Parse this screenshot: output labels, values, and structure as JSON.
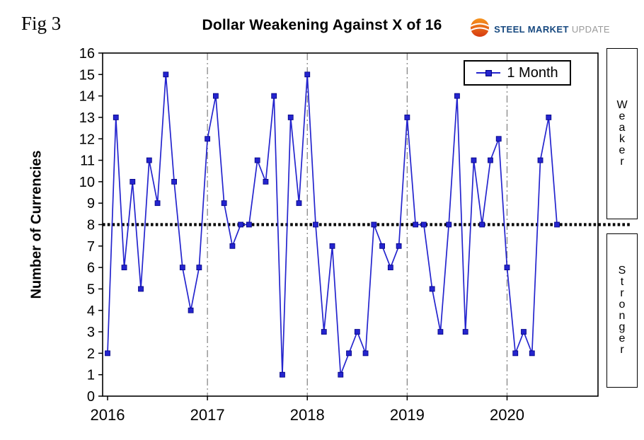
{
  "fig_label": "Fig 3",
  "title": "Dollar Weakening Against X of 16",
  "logo": {
    "part1": "STEEL",
    "part2": "MARKET",
    "part3": "UPDATE"
  },
  "ylabel": "Number of Currencies",
  "annotations": {
    "weaker": "Weaker",
    "stronger": "Stronger"
  },
  "chart_data": {
    "type": "line",
    "title": "Dollar Weakening Against X of 16",
    "xlabel": "",
    "ylabel": "Number of Currencies",
    "ylim": [
      0,
      16
    ],
    "yticks": [
      0,
      1,
      2,
      3,
      4,
      5,
      6,
      7,
      8,
      9,
      10,
      11,
      12,
      13,
      14,
      15,
      16
    ],
    "x_start": "2016-01",
    "x_frequency": "monthly",
    "x_tick_labels": [
      "2016",
      "2017",
      "2018",
      "2019",
      "2020"
    ],
    "grid": "vertical dash-dot at year boundaries",
    "legend_position": "top-right inside plot",
    "reference_line": {
      "value": 8,
      "style": "thick dotted black"
    },
    "right_labels": [
      "Weaker",
      "Stronger"
    ],
    "series": [
      {
        "name": "1 Month",
        "color": "#2424ce",
        "marker": "square",
        "marker_edge": "#000080",
        "values": [
          2,
          13,
          6,
          10,
          5,
          11,
          9,
          15,
          10,
          6,
          4,
          6,
          12,
          14,
          9,
          7,
          8,
          8,
          11,
          10,
          14,
          1,
          13,
          9,
          15,
          8,
          3,
          7,
          1,
          2,
          3,
          2,
          8,
          7,
          6,
          7,
          13,
          8,
          8,
          5,
          3,
          8,
          14,
          3,
          11,
          8,
          11,
          12,
          6,
          2,
          3,
          2,
          11,
          13,
          8
        ]
      }
    ]
  }
}
